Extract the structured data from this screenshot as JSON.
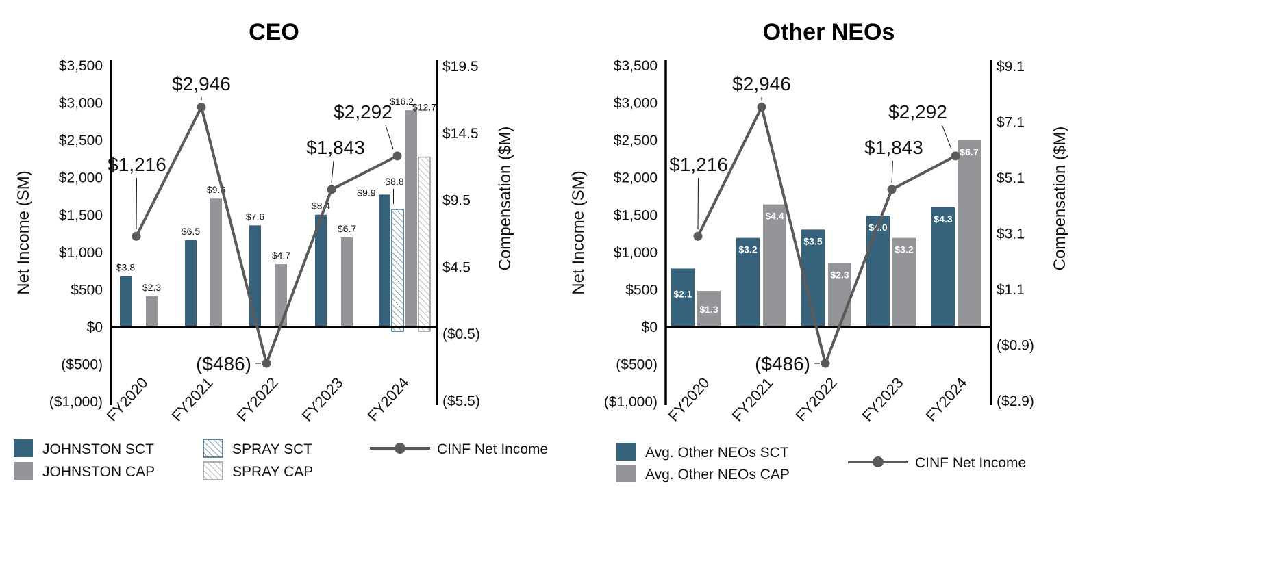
{
  "colors": {
    "sct": "#36627c",
    "cap": "#939598",
    "line": "#5a5a5a",
    "axis": "#000000"
  },
  "chart_data": [
    {
      "type": "bar+line",
      "title": "CEO",
      "categories": [
        "FY2020",
        "FY2021",
        "FY2022",
        "FY2023",
        "FY2024"
      ],
      "ylabel_left": "Net Income (SM)",
      "ylabel_right": "Compensation ($M)",
      "left_ylim": [
        -1000,
        3500
      ],
      "left_ticks": [
        "$3,500",
        "$3,000",
        "$2,500",
        "$2,000",
        "$1,500",
        "$1,000",
        "$500",
        "$0",
        "($500)",
        "($1,000)"
      ],
      "right_ylim": [
        -5.5,
        19.5
      ],
      "right_ticks": [
        "$19.5",
        "$14.5",
        "$9.5",
        "$4.5",
        "($0.5)",
        "($5.5)"
      ],
      "series": [
        {
          "name": "JOHNSTON SCT",
          "kind": "bar",
          "color": "#36627c",
          "values": [
            3.8,
            6.5,
            7.6,
            8.4,
            9.9
          ],
          "labels": [
            "$3.8",
            "$6.5",
            "$7.6",
            "$8.4",
            "$9.9"
          ]
        },
        {
          "name": "SPRAY SCT",
          "kind": "bar-hatched",
          "color": "#36627c",
          "values": [
            null,
            null,
            null,
            null,
            8.8
          ],
          "labels": [
            null,
            null,
            null,
            null,
            "$8.8"
          ]
        },
        {
          "name": "JOHNSTON CAP",
          "kind": "bar",
          "color": "#939598",
          "values": [
            2.3,
            9.6,
            4.7,
            6.7,
            16.2
          ],
          "labels": [
            "$2.3",
            "$9.6",
            "$4.7",
            "$6.7",
            "$16.2"
          ]
        },
        {
          "name": "SPRAY CAP",
          "kind": "bar-hatched",
          "color": "#939598",
          "values": [
            null,
            null,
            null,
            null,
            12.7
          ],
          "labels": [
            null,
            null,
            null,
            null,
            "$12.7"
          ]
        },
        {
          "name": "CINF Net Income",
          "kind": "line",
          "color": "#5a5a5a",
          "values": [
            1216,
            2946,
            -486,
            1843,
            2292
          ],
          "labels": [
            "$1,216",
            "$2,946",
            "($486)",
            "$1,843",
            "$2,292"
          ]
        }
      ]
    },
    {
      "type": "bar+line",
      "title": "Other NEOs",
      "categories": [
        "FY2020",
        "FY2021",
        "FY2022",
        "FY2023",
        "FY2024"
      ],
      "ylabel_left": "Net Income (SM)",
      "ylabel_right": "Compensation ($M)",
      "left_ylim": [
        -1000,
        3500
      ],
      "left_ticks": [
        "$3,500",
        "$3,000",
        "$2,500",
        "$2,000",
        "$1,500",
        "$1,000",
        "$500",
        "$0",
        "($500)",
        "($1,000)"
      ],
      "right_ylim": [
        -2.9,
        9.1
      ],
      "right_ticks": [
        "$9.1",
        "$7.1",
        "$5.1",
        "$3.1",
        "$1.1",
        "($0.9)",
        "($2.9)"
      ],
      "series": [
        {
          "name": "Avg. Other NEOs SCT",
          "kind": "bar",
          "color": "#36627c",
          "values": [
            2.1,
            3.2,
            3.5,
            4.0,
            4.3
          ],
          "labels": [
            "$2.1",
            "$3.2",
            "$3.5",
            "$4.0",
            "$4.3"
          ]
        },
        {
          "name": "Avg. Other NEOs CAP",
          "kind": "bar",
          "color": "#939598",
          "values": [
            1.3,
            4.4,
            2.3,
            3.2,
            6.7
          ],
          "labels": [
            "$1.3",
            "$4.4",
            "$2.3",
            "$3.2",
            "$6.7"
          ]
        },
        {
          "name": "CINF Net Income",
          "kind": "line",
          "color": "#5a5a5a",
          "values": [
            1216,
            2946,
            -486,
            1843,
            2292
          ],
          "labels": [
            "$1,216",
            "$2,946",
            "($486)",
            "$1,843",
            "$2,292"
          ]
        }
      ]
    }
  ]
}
